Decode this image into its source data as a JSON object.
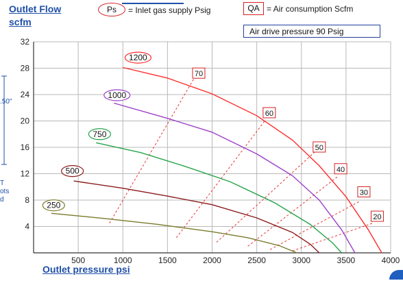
{
  "chart_data": {
    "type": "line",
    "ylabel_line1": "Outlet Flow",
    "ylabel_line2": "scfm",
    "xlabel": "Outlet pressure psi",
    "xlim": [
      0,
      4000
    ],
    "ylim": [
      0,
      32
    ],
    "xticks": [
      500,
      1000,
      1500,
      2000,
      2500,
      3000,
      3500,
      4000
    ],
    "yticks": [
      4,
      8,
      12,
      16,
      20,
      24,
      28,
      32
    ],
    "grid": true,
    "legend": {
      "ps_badge": "Ps",
      "ps_text": "= Inlet gas supply  Psig",
      "qa_badge": "QA",
      "qa_text": "= Air consumption  Scfm",
      "air_drive": "Air drive pressure  90 Psig"
    },
    "series": [
      {
        "name": "1200",
        "color": "#ff2a2a",
        "x": [
          1000,
          1500,
          2000,
          2500,
          2900,
          3200,
          3500,
          3750,
          3900
        ],
        "y": [
          28.1,
          26.5,
          24.1,
          20.8,
          17.1,
          13.2,
          8.5,
          3.5,
          0
        ],
        "badge_at": [
          1170,
          29.6
        ]
      },
      {
        "name": "1000",
        "color": "#9b3fc8",
        "x": [
          900,
          1500,
          2000,
          2500,
          2900,
          3200,
          3450,
          3600
        ],
        "y": [
          22.7,
          20.4,
          18.3,
          15.0,
          11.7,
          8.0,
          3.5,
          0
        ],
        "badge_at": [
          935,
          23.9
        ]
      },
      {
        "name": "750",
        "color": "#27a34a",
        "x": [
          700,
          1200,
          1700,
          2200,
          2700,
          3100,
          3350,
          3450
        ],
        "y": [
          16.7,
          15.2,
          13.1,
          10.8,
          7.6,
          4.3,
          1.5,
          0
        ],
        "badge_at": [
          740,
          18.0
        ]
      },
      {
        "name": "500",
        "color": "#8b1a1a",
        "x": [
          450,
          1000,
          1500,
          2000,
          2500,
          2900,
          3100,
          3200
        ],
        "y": [
          10.9,
          9.8,
          8.6,
          7.3,
          5.3,
          3.1,
          1.3,
          0
        ],
        "badge_at": [
          435,
          12.4
        ]
      },
      {
        "name": "250",
        "color": "#7a7a2a",
        "x": [
          200,
          800,
          1400,
          2000,
          2400,
          2750,
          2950
        ],
        "y": [
          6.0,
          5.2,
          4.3,
          3.2,
          2.3,
          1.1,
          0
        ],
        "badge_at": [
          225,
          7.2
        ]
      }
    ],
    "qa_lines": [
      {
        "label": "70",
        "x": [
          850,
          1800
        ],
        "y": [
          4.5,
          26.5
        ],
        "label_at": [
          1850,
          27.2
        ]
      },
      {
        "label": "60",
        "x": [
          1600,
          2600
        ],
        "y": [
          2.3,
          20.2
        ],
        "label_at": [
          2640,
          21.2
        ]
      },
      {
        "label": "50",
        "x": [
          2050,
          3150
        ],
        "y": [
          1.6,
          15.3
        ],
        "label_at": [
          3200,
          16.0
        ]
      },
      {
        "label": "40",
        "x": [
          2400,
          3400
        ],
        "y": [
          1.0,
          11.5
        ],
        "label_at": [
          3440,
          12.7
        ]
      },
      {
        "label": "30",
        "x": [
          2650,
          3650
        ],
        "y": [
          0.5,
          7.8
        ],
        "label_at": [
          3700,
          9.2
        ]
      },
      {
        "label": "20",
        "x": [
          2900,
          3800
        ],
        "y": [
          0.3,
          4.5
        ],
        "label_at": [
          3850,
          5.5
        ]
      }
    ]
  },
  "clipped": {
    "top": "",
    "left_dim": ".50\"",
    "left_note_1": "T",
    "left_note_2": "ots",
    "left_note_3": "d"
  }
}
